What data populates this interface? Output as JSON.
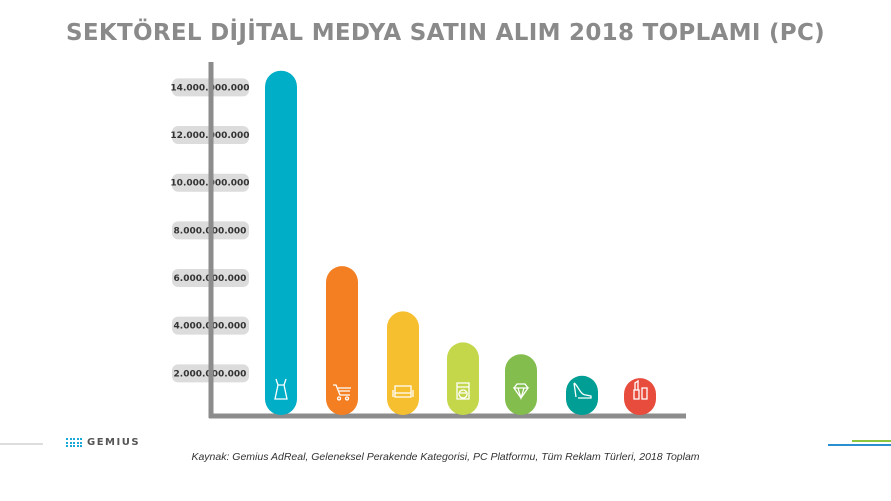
{
  "title": "SEKTÖREL DİJİTAL MEDYA SATIN ALIM 2018 TOPLAMI (PC)",
  "source": "Kaynak: Gemius AdReal, Geleneksel Perakende Kategorisi, PC Platformu, Tüm Reklam Türleri, 2018 Toplam",
  "logo": "GEMIUS",
  "chart_data": {
    "type": "bar",
    "title": "SEKTÖREL DİJİTAL MEDYA SATIN ALIM 2018 TOPLAMI (PC)",
    "xlabel": "",
    "ylabel": "",
    "ylim": [
      0,
      15000000000
    ],
    "yticks": [
      2000000000,
      4000000000,
      6000000000,
      8000000000,
      10000000000,
      12000000000,
      14000000000
    ],
    "ytick_labels": [
      "2.000.000.000",
      "4.000.000.000",
      "6.000.000.000",
      "8.000.000.000",
      "10.000.000.000",
      "12.000.000.000",
      "14.000.000.000"
    ],
    "categories": [
      "dress",
      "shopping-cart",
      "sofa",
      "washing-machine",
      "diamond",
      "high-heel",
      "lipstick"
    ],
    "values": [
      14700000000,
      6500000000,
      4600000000,
      3300000000,
      2800000000,
      1900000000,
      1800000000
    ],
    "colors": [
      "#00aec7",
      "#f37f22",
      "#f6bf2f",
      "#c4d74a",
      "#82bd4d",
      "#009e94",
      "#e84c3d"
    ]
  }
}
